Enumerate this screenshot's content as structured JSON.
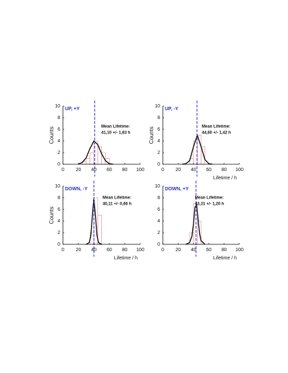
{
  "chart_data": [
    {
      "type": "histogram",
      "title": "UP, +Y",
      "annotation": [
        "Mean Lifetime:",
        "41,10 +/- 1,83 h"
      ],
      "ylabel": "Counts",
      "bins": [
        25,
        30,
        35,
        40,
        45,
        50,
        55,
        60
      ],
      "values": [
        0.5,
        1,
        2,
        4,
        3,
        2,
        1
      ],
      "color": "#e8a0a0",
      "fit": {
        "x": [
          20,
          25,
          30,
          35,
          40,
          45,
          50,
          55,
          60,
          65
        ],
        "y": [
          0.05,
          0.3,
          1.1,
          2.7,
          4,
          3.4,
          1.8,
          0.6,
          0.1,
          0
        ],
        "color": "#000000"
      },
      "mean_line": {
        "x": 41.1,
        "color": "#5555dd"
      },
      "xlim": [
        0,
        100
      ],
      "ylim": [
        0,
        10
      ],
      "xticks": [
        0,
        20,
        40,
        60,
        80,
        100
      ],
      "yticks": [
        0,
        2,
        4,
        6,
        8,
        10
      ]
    },
    {
      "type": "histogram",
      "title": "UP, -Y",
      "annotation": [
        "Mean Lifetime:",
        "44,60 +/- 1,42 h"
      ],
      "ylabel": "Counts",
      "xlabel": "Lifetime / h",
      "bins": [
        35,
        40,
        45,
        50,
        55
      ],
      "values": [
        1,
        4,
        5,
        3
      ],
      "color": "#e8a0a0",
      "fit": {
        "x": [
          25,
          30,
          35,
          40,
          45,
          50,
          55,
          60,
          65
        ],
        "y": [
          0,
          0.1,
          0.6,
          3,
          5,
          3,
          0.8,
          0.1,
          0
        ],
        "color": "#000000"
      },
      "mean_line": {
        "x": 44.6,
        "color": "#5555dd"
      },
      "xlim": [
        0,
        100
      ],
      "ylim": [
        0,
        10
      ],
      "xticks": [
        0,
        20,
        40,
        60,
        80,
        100
      ],
      "yticks": [
        0,
        2,
        4,
        6,
        8,
        10
      ]
    },
    {
      "type": "histogram",
      "title": "DOWN,  -Y",
      "annotation": [
        "Mean Lifetime:",
        "40,11 +/- 0,66 h"
      ],
      "ylabel": "Counts",
      "xlabel": "Lifetime / h",
      "bins": [
        35,
        40,
        45,
        50
      ],
      "values": [
        2,
        8,
        5
      ],
      "color": "#e8a0a0",
      "fit": {
        "x": [
          30,
          34,
          36,
          38,
          40,
          42,
          44,
          46,
          50
        ],
        "y": [
          0,
          0.3,
          1.4,
          4.8,
          8,
          5,
          1.6,
          0.3,
          0
        ],
        "color": "#000000"
      },
      "mean_line": {
        "x": 40.11,
        "color": "#5555dd"
      },
      "xlim": [
        0,
        100
      ],
      "ylim": [
        0,
        10
      ],
      "xticks": [
        0,
        20,
        40,
        60,
        80,
        100
      ],
      "yticks": [
        0,
        2,
        4,
        6,
        8,
        10
      ]
    },
    {
      "type": "histogram",
      "title": "DOWN, +Y",
      "annotation": [
        "Mean Lifetime:",
        "43,31 +/- 1,20 h"
      ],
      "xlabel": "Lifetime / h",
      "bins": [
        35,
        40,
        45,
        50
      ],
      "values": [
        2,
        7,
        4
      ],
      "color": "#e8a0a0",
      "fit": {
        "x": [
          30,
          35,
          38,
          40,
          42,
          44,
          46,
          48,
          50,
          55
        ],
        "y": [
          0,
          0.3,
          1.4,
          3.5,
          6.4,
          6.8,
          4.4,
          1.8,
          0.6,
          0
        ],
        "color": "#000000"
      },
      "mean_line": {
        "x": 43.31,
        "color": "#5555dd"
      },
      "xlim": [
        0,
        100
      ],
      "ylim": [
        0,
        10
      ],
      "xticks": [
        0,
        20,
        40,
        60,
        80,
        100
      ],
      "yticks": [
        0,
        2,
        4,
        6,
        8,
        10
      ]
    }
  ]
}
